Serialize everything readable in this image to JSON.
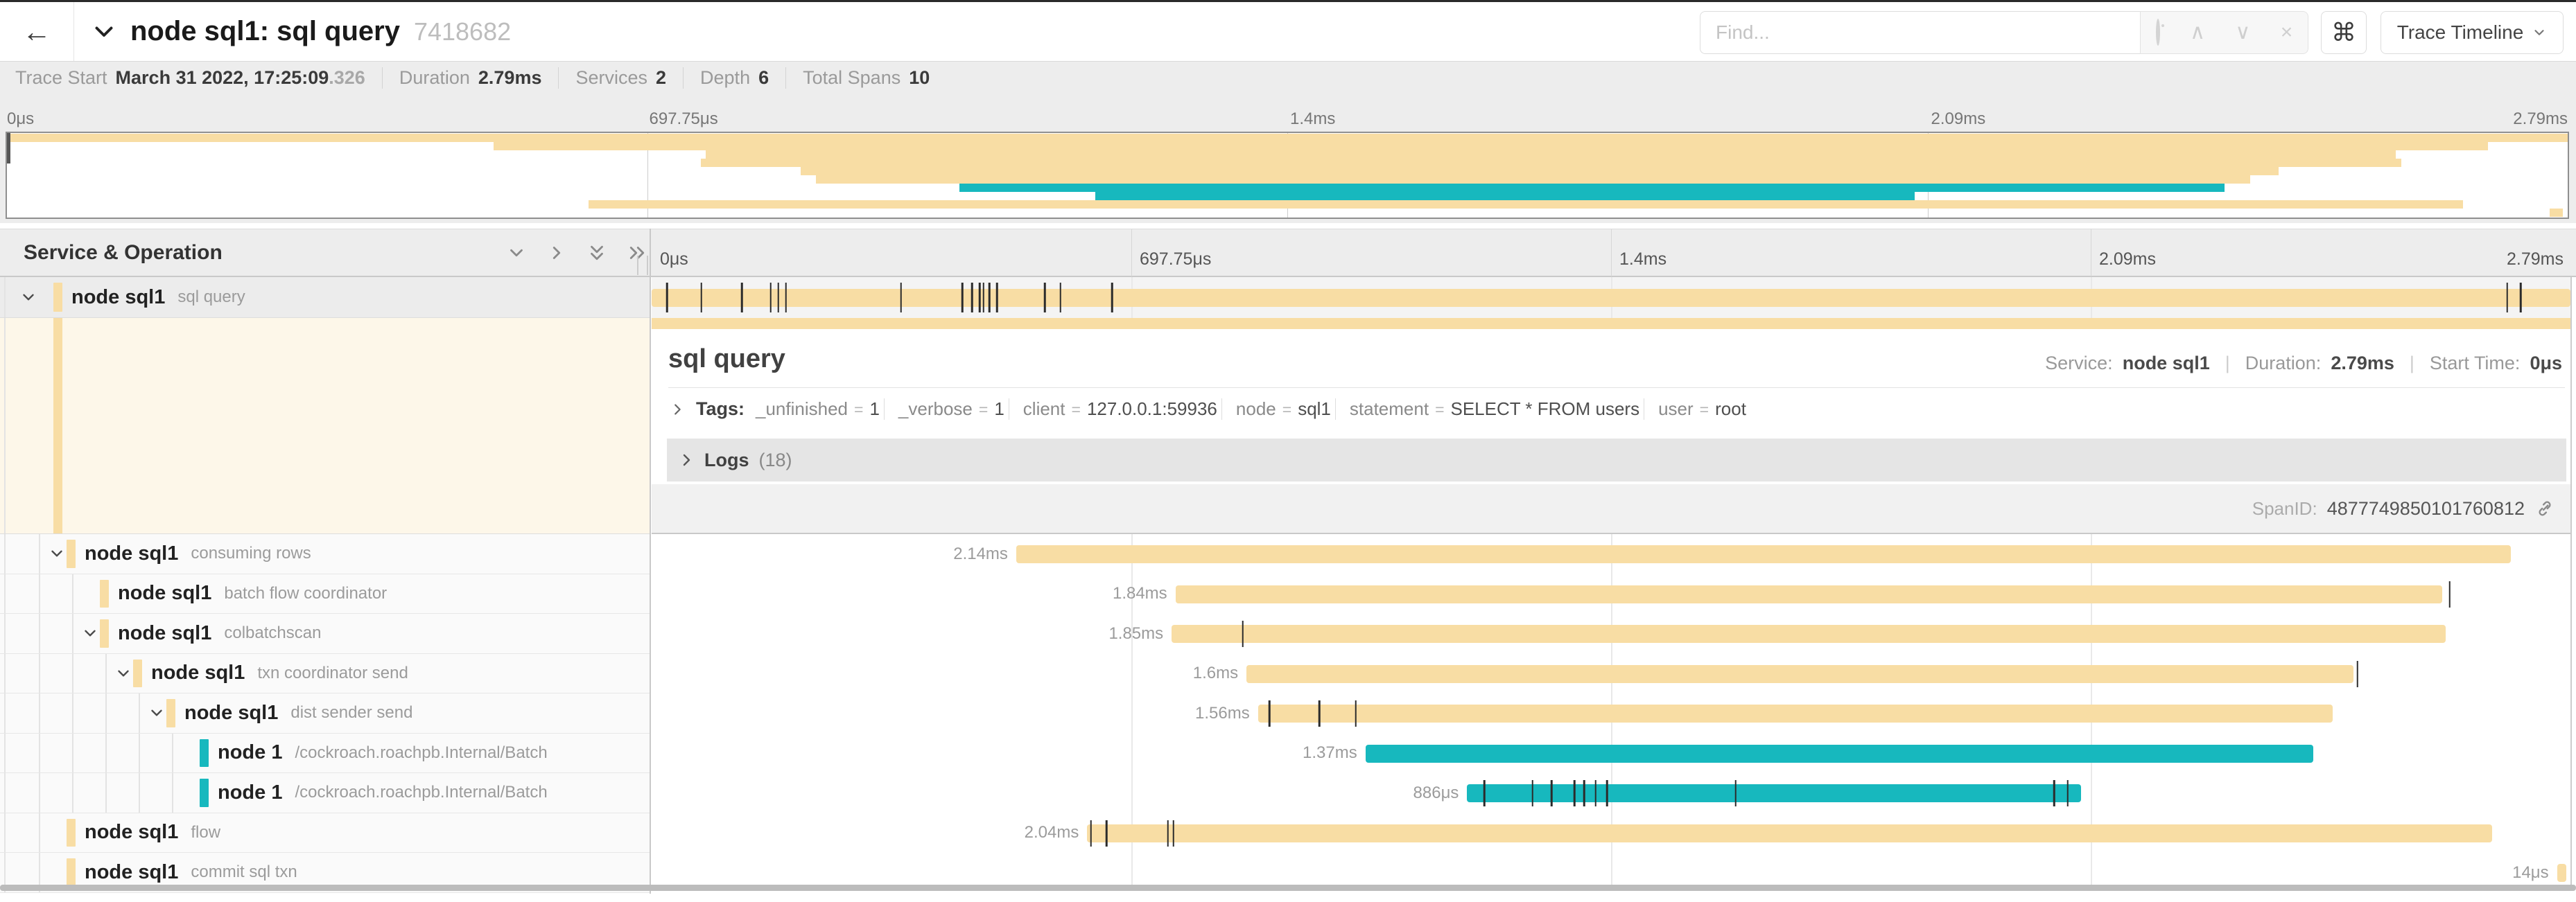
{
  "colors": {
    "tan": "#F8DDA4",
    "teal": "#17B8BE",
    "tick": "#2b2b2b"
  },
  "header": {
    "back_icon": "←",
    "title": "node sql1: sql query",
    "trace_id": "7418682",
    "find_placeholder": "Find...",
    "shortcut_glyph": "⌘",
    "view_mode": "Trace Timeline"
  },
  "trace_meta": {
    "items": [
      {
        "label": "Trace Start",
        "value": "March 31 2022, 17:25:09",
        "suffix": ".326"
      },
      {
        "label": "Duration",
        "value": "2.79ms"
      },
      {
        "label": "Services",
        "value": "2"
      },
      {
        "label": "Depth",
        "value": "6"
      },
      {
        "label": "Total Spans",
        "value": "10"
      }
    ]
  },
  "timeline": {
    "axis_ticks": [
      {
        "label": "0μs",
        "pct": 0
      },
      {
        "label": "697.75μs",
        "pct": 25
      },
      {
        "label": "1.4ms",
        "pct": 50
      },
      {
        "label": "2.09ms",
        "pct": 75
      },
      {
        "label": "2.79ms",
        "pct": 100
      }
    ],
    "left_header": "Service & Operation"
  },
  "detail": {
    "title": "sql query",
    "service_label": "Service:",
    "service": "node sql1",
    "duration_label": "Duration:",
    "duration": "2.79ms",
    "start_label": "Start Time:",
    "start": "0μs",
    "tags_label": "Tags:",
    "tags": [
      {
        "key": "_unfinished",
        "value": "1"
      },
      {
        "key": "_verbose",
        "value": "1"
      },
      {
        "key": "client",
        "value": "127.0.0.1:59936"
      },
      {
        "key": "node",
        "value": "sql1"
      },
      {
        "key": "statement",
        "value": "SELECT * FROM users"
      },
      {
        "key": "user",
        "value": "root"
      }
    ],
    "logs_label": "Logs",
    "logs_count": "(18)",
    "span_id_label": "SpanID:",
    "span_id": "4877749850101760812"
  },
  "spans": [
    {
      "service": "node sql1",
      "operation": "sql query",
      "depth": 0,
      "color": "tan",
      "start": 0,
      "end": 100,
      "duration": "",
      "expander": "down",
      "selected": true,
      "ticks": [
        0.8,
        2.6,
        4.7,
        6.2,
        6.6,
        7.0,
        13.0,
        16.2,
        16.7,
        17.1,
        17.3,
        17.6,
        18.0,
        20.5,
        21.3,
        24.0,
        96.7,
        97.4
      ]
    },
    {
      "service": "node sql1",
      "operation": "consuming rows",
      "depth": 1,
      "color": "tan",
      "start": 19.0,
      "end": 96.9,
      "duration": "2.14ms",
      "expander": "down",
      "ticks": []
    },
    {
      "service": "node sql1",
      "operation": "batch flow coordinator",
      "depth": 2,
      "color": "tan",
      "start": 27.3,
      "end": 93.3,
      "duration": "1.84ms",
      "expander": null,
      "ticks": [
        93.7
      ]
    },
    {
      "service": "node sql1",
      "operation": "colbatchscan",
      "depth": 2,
      "color": "tan",
      "start": 27.1,
      "end": 93.5,
      "duration": "1.85ms",
      "expander": "down",
      "ticks": [
        30.8
      ]
    },
    {
      "service": "node sql1",
      "operation": "txn coordinator send",
      "depth": 3,
      "color": "tan",
      "start": 31.0,
      "end": 88.7,
      "duration": "1.6ms",
      "expander": "down",
      "ticks": [
        88.9
      ]
    },
    {
      "service": "node sql1",
      "operation": "dist sender send",
      "depth": 4,
      "color": "tan",
      "start": 31.6,
      "end": 87.6,
      "duration": "1.56ms",
      "expander": "down",
      "ticks": [
        32.2,
        34.8,
        36.7
      ]
    },
    {
      "service": "node 1",
      "operation": "/cockroach.roachpb.Internal/Batch",
      "depth": 5,
      "color": "teal",
      "start": 37.2,
      "end": 86.6,
      "duration": "1.37ms",
      "expander": null,
      "ticks": []
    },
    {
      "service": "node 1",
      "operation": "/cockroach.roachpb.Internal/Batch",
      "depth": 5,
      "color": "teal",
      "start": 42.5,
      "end": 74.5,
      "duration": "886μs",
      "expander": null,
      "ticks": [
        43.4,
        45.9,
        46.9,
        48.1,
        48.6,
        49.2,
        49.8,
        56.5,
        73.1,
        73.8
      ]
    },
    {
      "service": "node sql1",
      "operation": "flow",
      "depth": 1,
      "color": "tan",
      "start": 22.7,
      "end": 95.9,
      "duration": "2.04ms",
      "expander": null,
      "ticks": [
        22.9,
        23.7,
        26.9,
        27.2
      ]
    },
    {
      "service": "node sql1",
      "operation": "commit sql txn",
      "depth": 1,
      "color": "tan",
      "start": 99.3,
      "end": 99.8,
      "duration": "14μs",
      "expander": null,
      "ticks": []
    }
  ]
}
